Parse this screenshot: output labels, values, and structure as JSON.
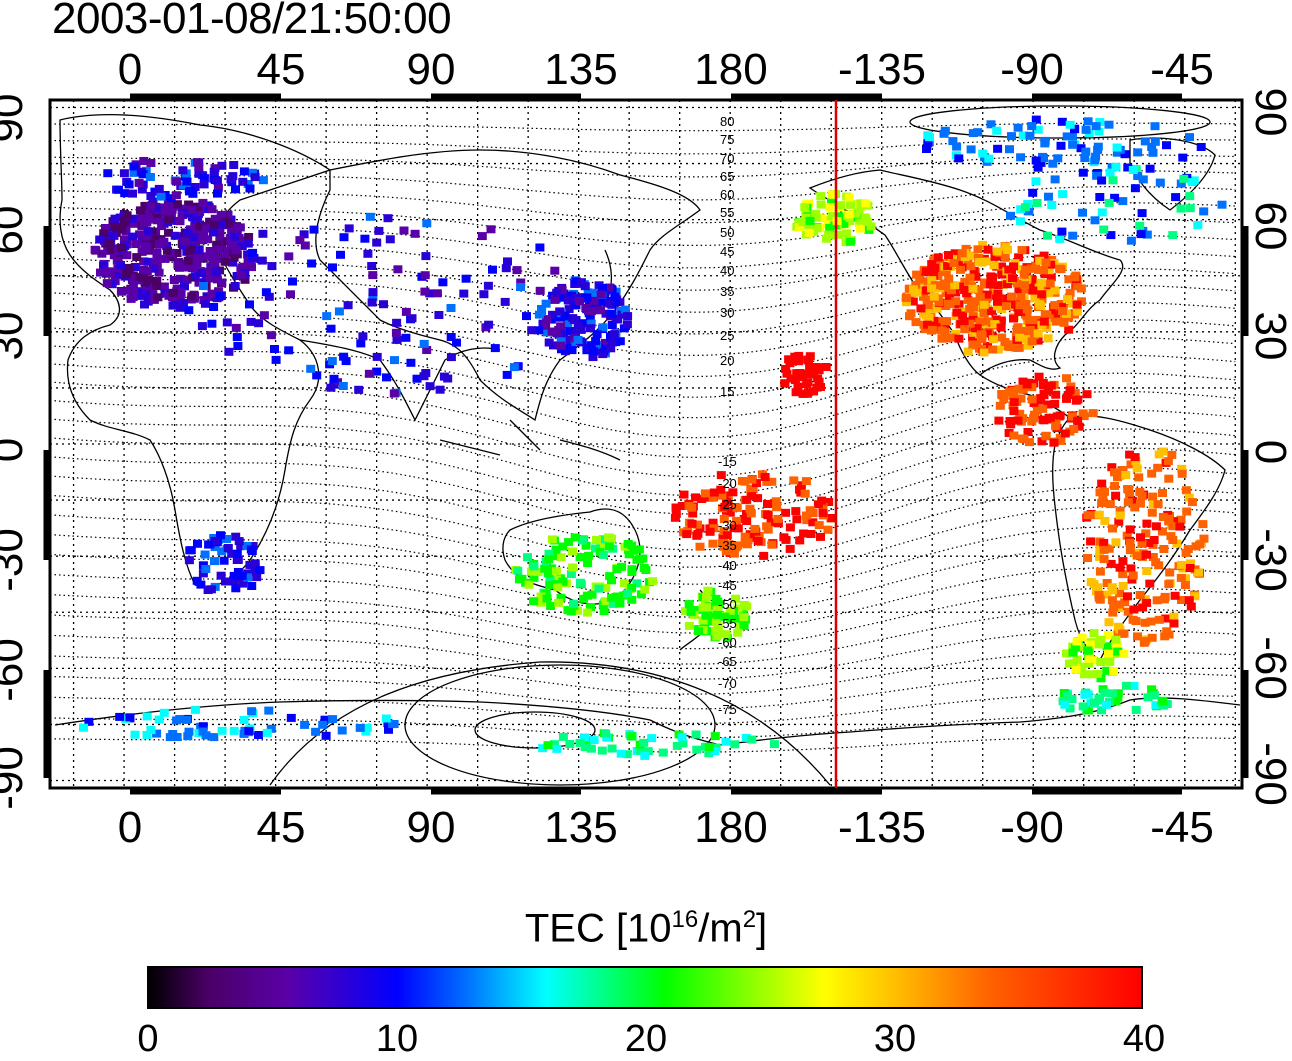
{
  "timestamp": "2003-01-08/21:50:00",
  "axes": {
    "top_lon_labels": [
      "0",
      "45",
      "90",
      "135",
      "180",
      "-135",
      "-90",
      "-45"
    ],
    "bottom_lon_labels": [
      "0",
      "45",
      "90",
      "135",
      "180",
      "-135",
      "-90",
      "-45"
    ],
    "left_lat_labels": [
      "90",
      "60",
      "30",
      "0",
      "-30",
      "-60",
      "-90"
    ],
    "right_lat_labels": [
      "90",
      "60",
      "30",
      "0",
      "-30",
      "-60",
      "-90"
    ],
    "lon_range": [
      -22,
      332
    ],
    "lat_range": [
      -92,
      92
    ]
  },
  "contours": {
    "labels_north": [
      "80",
      "75",
      "70",
      "65",
      "60",
      "55",
      "50",
      "45",
      "40",
      "35",
      "30",
      "25",
      "20",
      "15"
    ],
    "labels_south": [
      "15",
      "20",
      "25",
      "30",
      "35",
      "40",
      "45",
      "50",
      "55",
      "60",
      "65",
      "70",
      "75"
    ]
  },
  "terminator": {
    "lon": 212,
    "color": "#d80000"
  },
  "colorbar": {
    "title_prefix": "TEC  [10",
    "title_exp1": "16",
    "title_mid": "/m",
    "title_exp2": "2",
    "title_suffix": "]",
    "ticks": [
      "0",
      "10",
      "20",
      "30",
      "40"
    ],
    "range": [
      0,
      40
    ]
  },
  "colors": {
    "scale": [
      "#000000",
      "#4a0066",
      "#5a00a8",
      "#2a00d8",
      "#0000ff",
      "#0070ff",
      "#00ffff",
      "#00ff80",
      "#00ff00",
      "#a0ff00",
      "#ffff00",
      "#ffc000",
      "#ff6000",
      "#ff0000"
    ]
  }
}
